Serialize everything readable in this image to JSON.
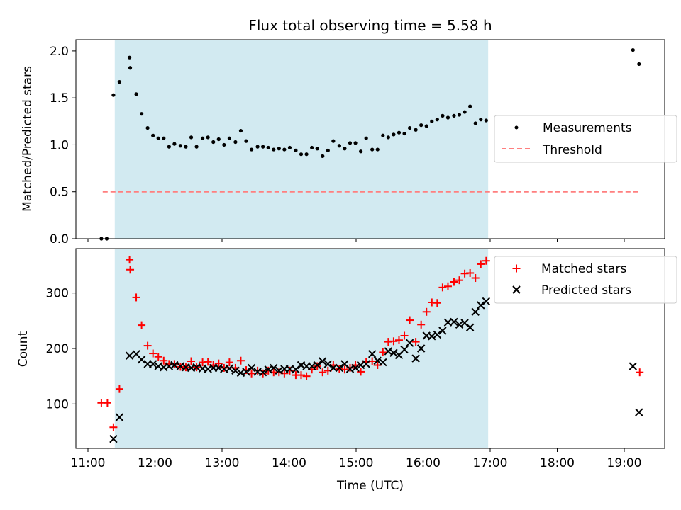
{
  "figure": {
    "title": "Flux total observing time = 5.58 h",
    "xlabel": "Time (UTC)",
    "xticks": [
      "11:00",
      "12:00",
      "13:00",
      "14:00",
      "15:00",
      "16:00",
      "17:00",
      "18:00",
      "19:00"
    ],
    "shaded_interval": {
      "start": 11.4,
      "end": 16.97,
      "color": "#add8e6"
    }
  },
  "chart_data": [
    {
      "type": "scatter",
      "title": "Flux total observing time = 5.58 h",
      "ylabel": "Matched/Predicted stars",
      "xlabel": "",
      "ylim": [
        0,
        2.12
      ],
      "yticks": [
        "0.0",
        "0.5",
        "1.0",
        "1.5",
        "2.0"
      ],
      "legend": "center-right",
      "threshold": {
        "name": "Threshold",
        "value": 0.5,
        "x_range": [
          11.22,
          19.22
        ],
        "color": "#ff7f7f",
        "style": "dashed"
      },
      "series": [
        {
          "name": "Measurements",
          "color": "#000000",
          "marker": "dot",
          "x": [
            11.2,
            11.28,
            11.38,
            11.47,
            11.62,
            11.63,
            11.72,
            11.8,
            11.89,
            11.97,
            12.05,
            12.13,
            12.21,
            12.29,
            12.38,
            12.46,
            12.54,
            12.62,
            12.71,
            12.79,
            12.87,
            12.95,
            13.03,
            13.11,
            13.2,
            13.28,
            13.36,
            13.44,
            13.53,
            13.61,
            13.69,
            13.77,
            13.85,
            13.93,
            14.01,
            14.1,
            14.18,
            14.26,
            14.34,
            14.42,
            14.5,
            14.58,
            14.66,
            14.75,
            14.83,
            14.91,
            14.99,
            15.07,
            15.15,
            15.24,
            15.32,
            15.4,
            15.48,
            15.56,
            15.64,
            15.72,
            15.8,
            15.89,
            15.97,
            16.05,
            16.13,
            16.21,
            16.29,
            16.37,
            16.46,
            16.54,
            16.62,
            16.7,
            16.78,
            16.86,
            16.94,
            19.13,
            19.22
          ],
          "y": [
            0.0,
            0.0,
            1.53,
            1.67,
            1.93,
            1.82,
            1.54,
            1.33,
            1.18,
            1.1,
            1.07,
            1.07,
            0.98,
            1.01,
            0.99,
            0.98,
            1.08,
            0.98,
            1.07,
            1.08,
            1.03,
            1.06,
            1.0,
            1.07,
            1.03,
            1.15,
            1.04,
            0.95,
            0.98,
            0.98,
            0.97,
            0.95,
            0.96,
            0.95,
            0.97,
            0.94,
            0.9,
            0.9,
            0.97,
            0.96,
            0.88,
            0.94,
            1.04,
            0.99,
            0.96,
            1.02,
            1.02,
            0.93,
            1.07,
            0.95,
            0.95,
            1.1,
            1.08,
            1.11,
            1.13,
            1.12,
            1.18,
            1.16,
            1.21,
            1.2,
            1.25,
            1.27,
            1.31,
            1.29,
            1.31,
            1.32,
            1.35,
            1.41,
            1.23,
            1.27,
            1.26,
            2.01,
            1.86
          ]
        }
      ]
    },
    {
      "type": "scatter",
      "xlabel": "Time (UTC)",
      "ylabel": "Count",
      "ylim": [
        20,
        380
      ],
      "yticks": [
        "100",
        "200",
        "300"
      ],
      "legend": "top-right",
      "series": [
        {
          "name": "Matched stars",
          "color": "#ff0000",
          "marker": "plus",
          "x": [
            11.2,
            11.29,
            11.38,
            11.47,
            11.62,
            11.63,
            11.72,
            11.8,
            11.89,
            11.97,
            12.05,
            12.13,
            12.21,
            12.29,
            12.38,
            12.46,
            12.54,
            12.62,
            12.71,
            12.79,
            12.87,
            12.95,
            13.03,
            13.11,
            13.2,
            13.28,
            13.36,
            13.44,
            13.53,
            13.61,
            13.69,
            13.77,
            13.85,
            13.93,
            14.01,
            14.1,
            14.18,
            14.26,
            14.34,
            14.42,
            14.5,
            14.58,
            14.66,
            14.75,
            14.83,
            14.91,
            14.99,
            15.07,
            15.15,
            15.24,
            15.32,
            15.4,
            15.48,
            15.56,
            15.64,
            15.72,
            15.8,
            15.89,
            15.97,
            16.05,
            16.13,
            16.21,
            16.29,
            16.37,
            16.46,
            16.54,
            16.62,
            16.7,
            16.78,
            16.86,
            16.94,
            19.23
          ],
          "y": [
            102,
            102,
            58,
            127,
            360,
            342,
            292,
            242,
            205,
            191,
            185,
            178,
            172,
            172,
            167,
            166,
            177,
            166,
            175,
            176,
            170,
            173,
            165,
            175,
            165,
            178,
            161,
            155,
            160,
            155,
            160,
            157,
            157,
            155,
            160,
            152,
            152,
            150,
            162,
            168,
            157,
            160,
            170,
            163,
            162,
            165,
            170,
            158,
            176,
            177,
            170,
            193,
            212,
            213,
            215,
            223,
            251,
            212,
            243,
            266,
            283,
            282,
            310,
            312,
            320,
            323,
            335,
            336,
            327,
            352,
            358,
            157
          ]
        },
        {
          "name": "Predicted stars",
          "color": "#000000",
          "marker": "x",
          "x": [
            11.38,
            11.47,
            11.62,
            11.72,
            11.8,
            11.89,
            11.97,
            12.05,
            12.13,
            12.21,
            12.29,
            12.38,
            12.46,
            12.54,
            12.62,
            12.71,
            12.79,
            12.87,
            12.95,
            13.03,
            13.11,
            13.2,
            13.28,
            13.36,
            13.44,
            13.53,
            13.61,
            13.69,
            13.77,
            13.85,
            13.93,
            14.01,
            14.1,
            14.18,
            14.26,
            14.34,
            14.42,
            14.5,
            14.58,
            14.66,
            14.75,
            14.83,
            14.91,
            14.99,
            15.07,
            15.15,
            15.24,
            15.32,
            15.4,
            15.48,
            15.56,
            15.64,
            15.72,
            15.8,
            15.89,
            15.97,
            16.05,
            16.13,
            16.21,
            16.29,
            16.37,
            16.46,
            16.54,
            16.62,
            16.7,
            16.78,
            16.86,
            16.94,
            19.13,
            19.22
          ],
          "y": [
            37,
            76,
            187,
            190,
            180,
            172,
            172,
            168,
            166,
            168,
            170,
            168,
            166,
            165,
            166,
            164,
            163,
            165,
            165,
            163,
            164,
            160,
            156,
            158,
            165,
            158,
            157,
            162,
            165,
            160,
            163,
            163,
            162,
            170,
            168,
            168,
            170,
            177,
            172,
            165,
            165,
            172,
            163,
            165,
            170,
            172,
            190,
            178,
            175,
            195,
            192,
            188,
            198,
            210,
            182,
            200,
            223,
            222,
            225,
            232,
            247,
            248,
            243,
            246,
            238,
            266,
            278,
            285,
            168,
            85
          ]
        }
      ]
    }
  ]
}
